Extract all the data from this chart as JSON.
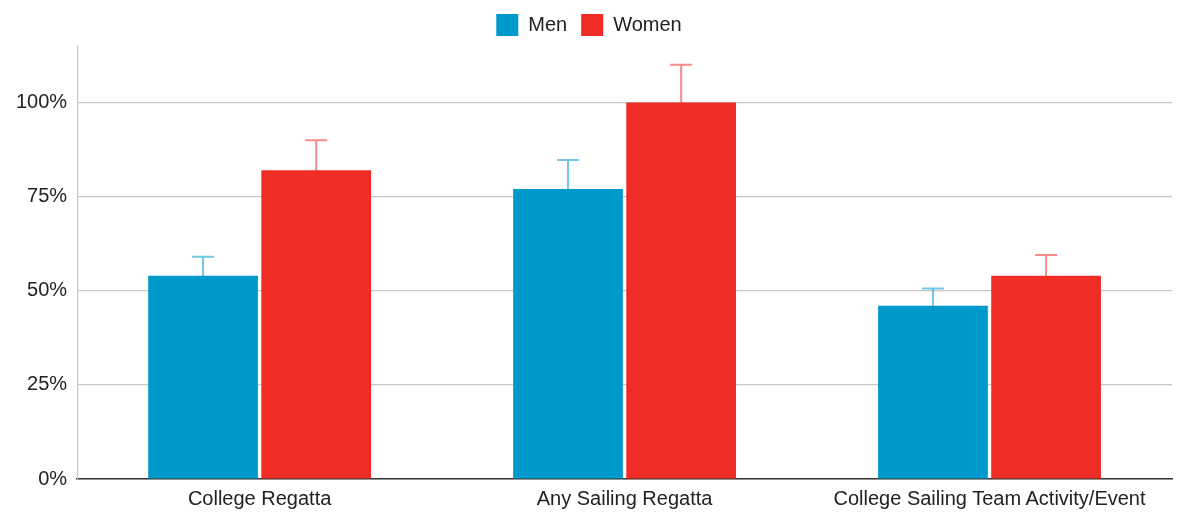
{
  "chart_data": {
    "type": "bar",
    "categories": [
      "College Regatta",
      "Any Sailing Regatta",
      "College Sailing Team Activity/Event"
    ],
    "series": [
      {
        "name": "Men",
        "color": "#0099cc",
        "values": [
          54,
          77,
          46
        ],
        "errors": [
          5,
          7.7,
          4.6
        ]
      },
      {
        "name": "Women",
        "color": "#ef2d26",
        "values": [
          82,
          100,
          54
        ],
        "errors": [
          8,
          10,
          5.5
        ]
      }
    ],
    "ylim": [
      0,
      115
    ],
    "yticks": [
      {
        "value": 0,
        "label": "0%"
      },
      {
        "value": 25,
        "label": "25%"
      },
      {
        "value": 50,
        "label": "50%"
      },
      {
        "value": 75,
        "label": "75%"
      },
      {
        "value": 100,
        "label": "100%"
      }
    ],
    "grid": "y",
    "legend": "top"
  }
}
